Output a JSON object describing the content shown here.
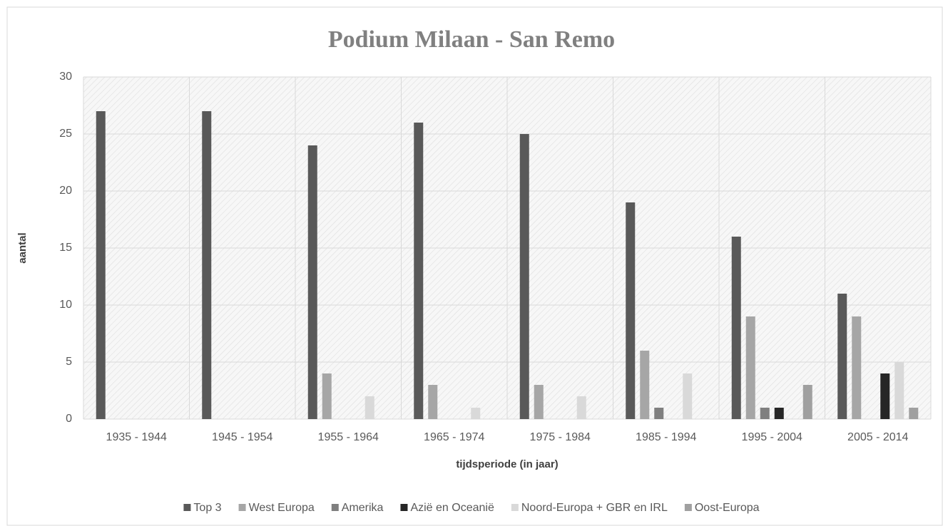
{
  "chart_data": {
    "type": "bar",
    "title": "Podium Milaan - San Remo",
    "x_label": "tijdsperiode (in jaar)",
    "y_label": "aantal",
    "categories": [
      "1935 - 1944",
      "1945 - 1954",
      "1955 - 1964",
      "1965 - 1974",
      "1975 - 1984",
      "1985 - 1994",
      "1995 - 2004",
      "2005 - 2014"
    ],
    "series": [
      {
        "name": "Top 3",
        "color": "#595959",
        "values": [
          27,
          27,
          24,
          26,
          25,
          19,
          16,
          11
        ]
      },
      {
        "name": "West Europa",
        "color": "#a6a6a6",
        "values": [
          0,
          0,
          4,
          3,
          3,
          6,
          9,
          9
        ]
      },
      {
        "name": "Amerika",
        "color": "#7f7f7f",
        "values": [
          0,
          0,
          0,
          0,
          0,
          1,
          1,
          0
        ]
      },
      {
        "name": "Azië en Oceanië",
        "color": "#262626",
        "values": [
          0,
          0,
          0,
          0,
          0,
          0,
          1,
          4
        ]
      },
      {
        "name": "Noord-Europa + GBR en IRL",
        "color": "#d9d9d9",
        "values": [
          0,
          0,
          2,
          1,
          2,
          4,
          0,
          5
        ]
      },
      {
        "name": "Oost-Europa",
        "color": "#a0a0a0",
        "values": [
          0,
          0,
          0,
          0,
          0,
          0,
          3,
          1
        ]
      }
    ],
    "ylim": [
      0,
      30
    ],
    "yticks": [
      0,
      5,
      10,
      15,
      20,
      25,
      30
    ],
    "grid": true,
    "legend": "bottom"
  }
}
